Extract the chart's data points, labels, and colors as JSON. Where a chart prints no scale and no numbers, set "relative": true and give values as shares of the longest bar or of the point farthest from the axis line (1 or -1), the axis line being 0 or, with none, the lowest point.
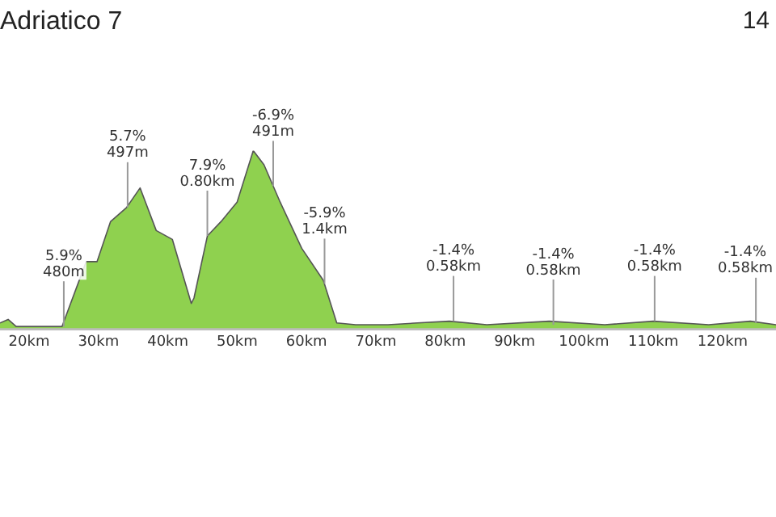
{
  "chart_data": {
    "type": "area",
    "title": "Adriatico 7",
    "relative": true,
    "x": [
      15.8,
      16.97,
      18.13,
      24.74,
      28.23,
      29.79,
      31.73,
      34.06,
      36.0,
      38.33,
      40.66,
      43.38,
      43.77,
      45.71,
      47.66,
      49.99,
      52.32,
      53.87,
      56.2,
      59.31,
      62.42,
      64.36,
      67.08,
      71.75,
      76,
      80.6,
      86,
      95,
      103,
      110,
      118,
      124,
      127.7
    ],
    "series": [
      {
        "color": "#8fd14f",
        "values": [
          0.03,
          0.05,
          0.01,
          0.01,
          0.375,
          0.375,
          0.6,
          0.68,
          0.79,
          0.55,
          0.5,
          0.14,
          0.17,
          0.52,
          0.6,
          0.71,
          1,
          0.92,
          0.71,
          0.45,
          0.27,
          0.03,
          0.02,
          0.02,
          0.03,
          0.04,
          0.02,
          0.04,
          0.02,
          0.04,
          0.02,
          0.04,
          0.02
        ]
      }
    ],
    "xlim": [
      15.8,
      127.7
    ],
    "xticks": [
      {
        "value": 20,
        "label": "20km"
      },
      {
        "value": 30,
        "label": "30km"
      },
      {
        "value": 40,
        "label": "40km"
      },
      {
        "value": 50,
        "label": "50km"
      },
      {
        "value": 60,
        "label": "60km"
      },
      {
        "value": 70,
        "label": "70km"
      },
      {
        "value": 80,
        "label": "80km"
      },
      {
        "value": 90,
        "label": "90km"
      },
      {
        "value": 100,
        "label": "100km"
      },
      {
        "value": 110,
        "label": "110km"
      },
      {
        "value": 120,
        "label": "120km"
      }
    ],
    "annotations": [
      "14",
      {
        "text": "5.9%\n480m",
        "x": 25.0,
        "y": 0.01
      },
      {
        "text": "5.7%\n497m",
        "x": 34.2,
        "y": 0.68
      },
      {
        "text": "7.9%\n0.80km",
        "x": 45.7,
        "y": 0.52
      },
      {
        "text": "-6.9%\n491m",
        "x": 55.2,
        "y": 0.8
      },
      {
        "text": "-5.9%\n1.4km",
        "x": 62.6,
        "y": 0.25
      },
      {
        "text": "-1.4%\n0.58km",
        "x": 81.2,
        "y": 0.04
      },
      {
        "text": "-1.4%\n0.58km",
        "x": 95.6,
        "y": 0.02
      },
      {
        "text": "-1.4%\n0.58km",
        "x": 110.2,
        "y": 0.04
      },
      {
        "text": "-1.4%\n0.58km",
        "x": 124.8,
        "y": 0.03
      }
    ],
    "grid": false,
    "legend": false
  }
}
